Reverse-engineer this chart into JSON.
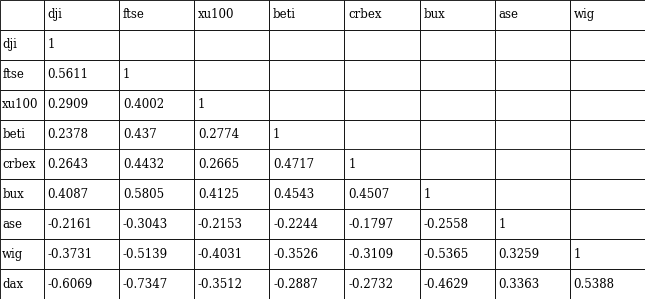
{
  "col_headers": [
    "dji",
    "ftse",
    "xu100",
    "beti",
    "crbex",
    "bux",
    "ase",
    "wig"
  ],
  "row_headers": [
    "dji",
    "ftse",
    "xu100",
    "beti",
    "crbex",
    "bux",
    "ase",
    "wig",
    "dax"
  ],
  "table_data": [
    [
      "1",
      "",
      "",
      "",
      "",
      "",
      "",
      ""
    ],
    [
      "0.5611",
      "1",
      "",
      "",
      "",
      "",
      "",
      ""
    ],
    [
      "0.2909",
      "0.4002",
      "1",
      "",
      "",
      "",
      "",
      ""
    ],
    [
      "0.2378",
      "0.437",
      "0.2774",
      "1",
      "",
      "",
      "",
      ""
    ],
    [
      "0.2643",
      "0.4432",
      "0.2665",
      "0.4717",
      "1",
      "",
      "",
      ""
    ],
    [
      "0.4087",
      "0.5805",
      "0.4125",
      "0.4543",
      "0.4507",
      "1",
      "",
      ""
    ],
    [
      "-0.2161",
      "-0.3043",
      "-0.2153",
      "-0.2244",
      "-0.1797",
      "-0.2558",
      "1",
      ""
    ],
    [
      "-0.3731",
      "-0.5139",
      "-0.4031",
      "-0.3526",
      "-0.3109",
      "-0.5365",
      "0.3259",
      "1"
    ],
    [
      "-0.6069",
      "-0.7347",
      "-0.3512",
      "-0.2887",
      "-0.2732",
      "-0.4629",
      "0.3363",
      "0.5388"
    ]
  ],
  "bg_color": "#ffffff",
  "line_color": "#000000",
  "text_color": "#000000",
  "font_family": "serif",
  "font_size": 8.5,
  "fig_width": 6.45,
  "fig_height": 2.99,
  "dpi": 100
}
